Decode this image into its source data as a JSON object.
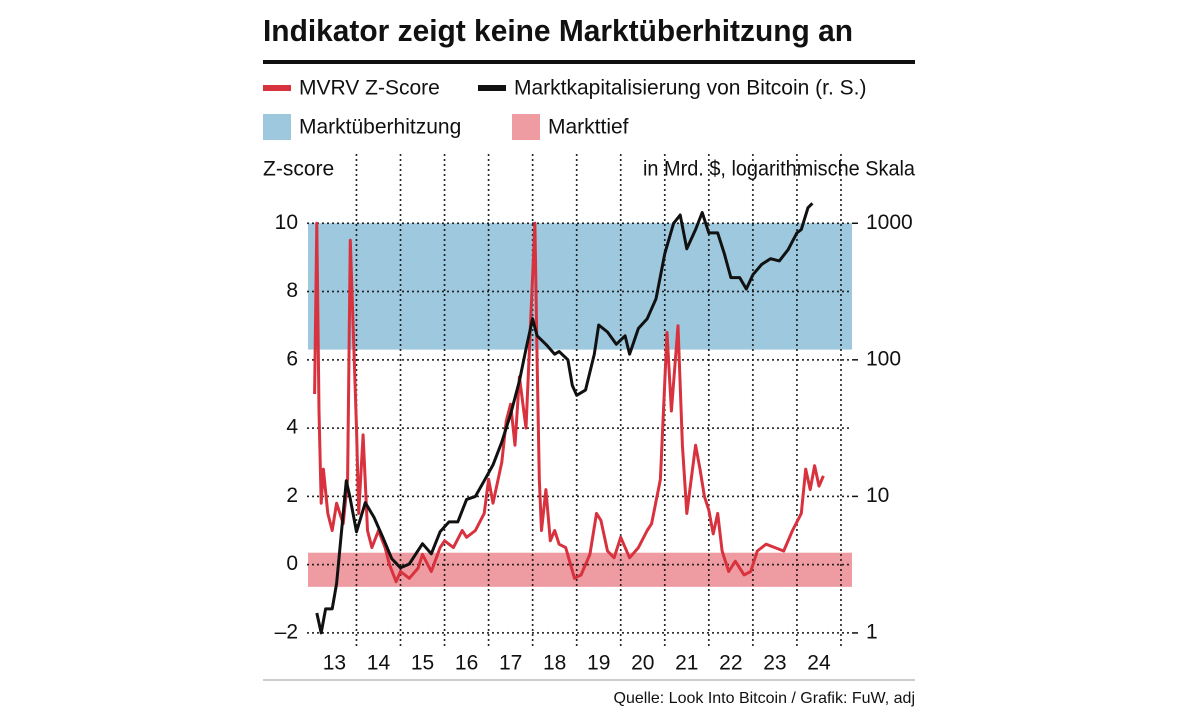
{
  "chart_data": {
    "type": "line",
    "title": "Indikator zeigt keine Marktüberhitzung an",
    "ylabel": "Z-score",
    "y2label": "in Mrd. $, logarithmische Skala",
    "source": "Quelle: Look Into Bitcoin / Grafik: FuW, adj",
    "xlim": [
      2012.9,
      2025.25
    ],
    "xticks": [
      {
        "value": 2013.5,
        "label": "13"
      },
      {
        "value": 2014.5,
        "label": "14"
      },
      {
        "value": 2015.5,
        "label": "15"
      },
      {
        "value": 2016.5,
        "label": "16"
      },
      {
        "value": 2017.5,
        "label": "17"
      },
      {
        "value": 2018.5,
        "label": "18"
      },
      {
        "value": 2019.5,
        "label": "19"
      },
      {
        "value": 2020.5,
        "label": "20"
      },
      {
        "value": 2021.5,
        "label": "21"
      },
      {
        "value": 2022.5,
        "label": "22"
      },
      {
        "value": 2023.5,
        "label": "23"
      },
      {
        "value": 2024.5,
        "label": "24"
      }
    ],
    "xgrid": [
      2014,
      2015,
      2016,
      2017,
      2018,
      2019,
      2020,
      2021,
      2022,
      2023,
      2024,
      2025
    ],
    "ylim": [
      -2.5,
      12
    ],
    "yticks": [
      {
        "value": -2,
        "label": "–2"
      },
      0,
      2,
      4,
      6,
      8,
      10
    ],
    "y2lim": [
      0.75,
      3162
    ],
    "y2ticks": [
      1,
      10,
      100,
      1000
    ],
    "y2log": true,
    "grid": true,
    "bands": [
      {
        "name": "Marktüberhitzung",
        "color": "#9dc8de",
        "range": [
          6.3,
          10
        ]
      },
      {
        "name": "Markttief",
        "color": "#ee9ca2",
        "range": [
          -0.65,
          0.35
        ]
      }
    ],
    "series": [
      {
        "name": "MVRV Z-Score",
        "color": "#d8323e",
        "x": [
          2013.05,
          2013.1,
          2013.15,
          2013.2,
          2013.25,
          2013.35,
          2013.45,
          2013.55,
          2013.7,
          2013.8,
          2013.86,
          2014.0,
          2014.05,
          2014.15,
          2014.25,
          2014.35,
          2014.5,
          2014.65,
          2014.75,
          2014.9,
          2015.0,
          2015.2,
          2015.4,
          2015.5,
          2015.7,
          2015.9,
          2016.0,
          2016.2,
          2016.4,
          2016.5,
          2016.7,
          2016.9,
          2017.0,
          2017.1,
          2017.3,
          2017.4,
          2017.5,
          2017.6,
          2017.7,
          2017.85,
          2018.05,
          2018.1,
          2018.15,
          2018.2,
          2018.3,
          2018.4,
          2018.5,
          2018.6,
          2018.75,
          2018.95,
          2019.1,
          2019.3,
          2019.45,
          2019.55,
          2019.7,
          2019.85,
          2020.0,
          2020.2,
          2020.4,
          2020.6,
          2020.7,
          2020.9,
          2021.05,
          2021.15,
          2021.3,
          2021.4,
          2021.5,
          2021.6,
          2021.7,
          2021.8,
          2021.9,
          2022.0,
          2022.1,
          2022.2,
          2022.3,
          2022.45,
          2022.6,
          2022.8,
          2022.95,
          2023.1,
          2023.3,
          2023.5,
          2023.7,
          2023.9,
          2024.1,
          2024.2,
          2024.3,
          2024.4,
          2024.5,
          2024.6
        ],
        "values": [
          5.0,
          10.0,
          4.5,
          1.8,
          2.8,
          1.5,
          1.0,
          1.8,
          1.2,
          2.5,
          9.5,
          4.0,
          1.5,
          3.8,
          1.0,
          0.5,
          1.0,
          0.5,
          0.0,
          -0.5,
          -0.2,
          -0.4,
          -0.1,
          0.3,
          -0.2,
          0.5,
          0.7,
          0.5,
          1.0,
          0.8,
          1.0,
          1.5,
          2.5,
          1.8,
          3.0,
          4.2,
          4.7,
          3.5,
          5.5,
          4.0,
          10.0,
          6.0,
          2.5,
          1.0,
          2.2,
          0.7,
          1.0,
          0.6,
          0.5,
          -0.4,
          -0.3,
          0.3,
          1.5,
          1.3,
          0.4,
          0.2,
          0.8,
          0.2,
          0.5,
          1.0,
          1.2,
          2.5,
          6.8,
          4.5,
          7.0,
          3.5,
          1.5,
          2.5,
          3.5,
          2.8,
          2.0,
          1.6,
          0.9,
          1.5,
          0.4,
          -0.2,
          0.1,
          -0.3,
          -0.2,
          0.4,
          0.6,
          0.5,
          0.4,
          1.0,
          1.5,
          2.8,
          2.2,
          2.9,
          2.3,
          2.6
        ]
      },
      {
        "name": "Marktkapitalisierung von Bitcoin (r. S.)",
        "color": "#111111",
        "axis": "y2",
        "x": [
          2013.1,
          2013.2,
          2013.3,
          2013.45,
          2013.55,
          2013.77,
          2013.85,
          2014.0,
          2014.2,
          2014.4,
          2014.6,
          2014.8,
          2015.0,
          2015.2,
          2015.5,
          2015.7,
          2015.9,
          2016.1,
          2016.3,
          2016.5,
          2016.7,
          2016.9,
          2017.1,
          2017.3,
          2017.5,
          2017.7,
          2017.85,
          2018.0,
          2018.1,
          2018.3,
          2018.5,
          2018.6,
          2018.8,
          2018.9,
          2019.0,
          2019.2,
          2019.4,
          2019.5,
          2019.7,
          2019.9,
          2020.1,
          2020.2,
          2020.4,
          2020.6,
          2020.8,
          2021.0,
          2021.2,
          2021.35,
          2021.5,
          2021.7,
          2021.85,
          2022.0,
          2022.2,
          2022.35,
          2022.5,
          2022.7,
          2022.85,
          2023.0,
          2023.2,
          2023.4,
          2023.6,
          2023.8,
          2024.0,
          2024.1,
          2024.25,
          2024.35
        ],
        "values": [
          1.4,
          1.0,
          1.5,
          1.5,
          2.3,
          13,
          10,
          5.5,
          9,
          7,
          5,
          3.5,
          3,
          3.2,
          4.5,
          3.8,
          5.5,
          6.5,
          6.5,
          9.5,
          10,
          13,
          17,
          25,
          40,
          70,
          120,
          200,
          150,
          130,
          110,
          115,
          100,
          65,
          55,
          60,
          110,
          180,
          160,
          130,
          150,
          110,
          170,
          200,
          280,
          600,
          1000,
          1150,
          650,
          900,
          1200,
          850,
          850,
          600,
          400,
          400,
          330,
          420,
          500,
          550,
          530,
          640,
          850,
          900,
          1300,
          1400
        ]
      }
    ]
  }
}
